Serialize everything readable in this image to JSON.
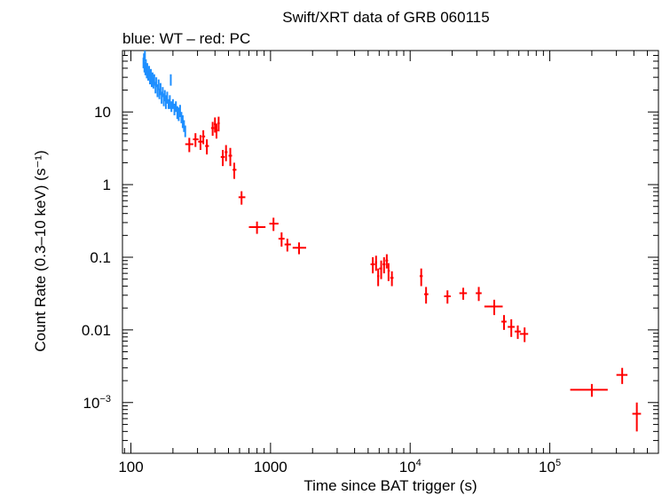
{
  "chart_data": {
    "type": "scatter",
    "title": "Swift/XRT data of GRB 060115",
    "subtitle": "blue: WT – red: PC",
    "xlabel": "Time since BAT trigger (s)",
    "ylabel": "Count Rate (0.3–10 keV) (s⁻¹)",
    "xscale": "log",
    "yscale": "log",
    "xlim": [
      87,
      600000
    ],
    "ylim": [
      0.0002,
      70
    ],
    "x_ticks": [
      {
        "value": 100,
        "label": "100"
      },
      {
        "value": 1000,
        "label": "1000"
      },
      {
        "value": 10000,
        "base": "10",
        "exp": "4"
      },
      {
        "value": 100000,
        "base": "10",
        "exp": "5"
      }
    ],
    "y_ticks": [
      {
        "value": 10,
        "label": "10"
      },
      {
        "value": 1,
        "label": "1"
      },
      {
        "value": 0.1,
        "label": "0.1"
      },
      {
        "value": 0.01,
        "label": "0.01"
      },
      {
        "value": 0.001,
        "base": "10",
        "exp": "−3"
      }
    ],
    "series": [
      {
        "name": "WT",
        "color": "#1e8fff",
        "points": [
          [
            123,
            48,
            8
          ],
          [
            124,
            55,
            9
          ],
          [
            125,
            42,
            7
          ],
          [
            126,
            60,
            10
          ],
          [
            127,
            38,
            6
          ],
          [
            128,
            45,
            8
          ],
          [
            130,
            35,
            6
          ],
          [
            131,
            40,
            7
          ],
          [
            133,
            32,
            5
          ],
          [
            135,
            37,
            6
          ],
          [
            137,
            29,
            5
          ],
          [
            139,
            33,
            6
          ],
          [
            141,
            27,
            5
          ],
          [
            143,
            30,
            5
          ],
          [
            145,
            25,
            4
          ],
          [
            147,
            28,
            5
          ],
          [
            150,
            22,
            4
          ],
          [
            152,
            26,
            4
          ],
          [
            155,
            20,
            4
          ],
          [
            158,
            24,
            4
          ],
          [
            160,
            18,
            3
          ],
          [
            163,
            21,
            4
          ],
          [
            166,
            16,
            3
          ],
          [
            169,
            19,
            3
          ],
          [
            172,
            15,
            3
          ],
          [
            175,
            17,
            3
          ],
          [
            178,
            14,
            3
          ],
          [
            182,
            16,
            3
          ],
          [
            186,
            13,
            2
          ],
          [
            190,
            14,
            3
          ],
          [
            193,
            28,
            5
          ],
          [
            195,
            12,
            2
          ],
          [
            200,
            13,
            2
          ],
          [
            205,
            11,
            2
          ],
          [
            210,
            12,
            2
          ],
          [
            215,
            10,
            2
          ],
          [
            220,
            9.5,
            2
          ],
          [
            225,
            10.5,
            2
          ],
          [
            230,
            8.5,
            1.5
          ],
          [
            235,
            7.5,
            1.5
          ],
          [
            240,
            6.5,
            1.2
          ],
          [
            245,
            5.5,
            1
          ]
        ]
      },
      {
        "name": "PC",
        "color": "#ff0000",
        "points": [
          [
            262,
            3.6,
            0.8,
            245,
            280
          ],
          [
            290,
            4.2,
            0.9,
            278,
            305
          ],
          [
            315,
            3.9,
            0.9,
            303,
            330
          ],
          [
            330,
            4.6,
            1,
            322,
            340
          ],
          [
            350,
            3.4,
            0.8,
            340,
            362
          ],
          [
            385,
            6.0,
            1.3,
            375,
            395
          ],
          [
            400,
            6.8,
            1.6,
            393,
            408
          ],
          [
            410,
            5.6,
            1.3,
            404,
            418
          ],
          [
            425,
            7.0,
            1.6,
            417,
            433
          ],
          [
            455,
            2.4,
            0.6,
            440,
            470
          ],
          [
            480,
            2.8,
            0.7,
            470,
            492
          ],
          [
            515,
            2.5,
            0.7,
            500,
            530
          ],
          [
            550,
            1.6,
            0.4,
            535,
            570
          ],
          [
            620,
            0.67,
            0.14,
            590,
            660
          ],
          [
            800,
            0.26,
            0.05,
            700,
            920
          ],
          [
            1050,
            0.29,
            0.06,
            980,
            1140
          ],
          [
            1200,
            0.18,
            0.04,
            1140,
            1260
          ],
          [
            1320,
            0.15,
            0.03,
            1260,
            1400
          ],
          [
            1600,
            0.135,
            0.025,
            1440,
            1800
          ],
          [
            5400,
            0.08,
            0.02,
            5200,
            5600
          ],
          [
            5700,
            0.085,
            0.02,
            5600,
            5800
          ],
          [
            5900,
            0.055,
            0.015,
            5800,
            6000
          ],
          [
            6200,
            0.07,
            0.02,
            6000,
            6300
          ],
          [
            6500,
            0.08,
            0.02,
            6350,
            6650
          ],
          [
            6800,
            0.09,
            0.02,
            6650,
            6950
          ],
          [
            7000,
            0.065,
            0.018,
            6900,
            7150
          ],
          [
            7400,
            0.052,
            0.012,
            7200,
            7600
          ],
          [
            12000,
            0.055,
            0.015,
            11700,
            12300
          ],
          [
            13000,
            0.031,
            0.008,
            12600,
            13500
          ],
          [
            18500,
            0.029,
            0.006,
            17500,
            19500
          ],
          [
            24000,
            0.032,
            0.006,
            22500,
            25500
          ],
          [
            31000,
            0.032,
            0.007,
            29500,
            32500
          ],
          [
            40000,
            0.021,
            0.005,
            34000,
            46000
          ],
          [
            47000,
            0.013,
            0.003,
            45000,
            49000
          ],
          [
            53000,
            0.011,
            0.003,
            50000,
            56000
          ],
          [
            59000,
            0.0095,
            0.002,
            56000,
            62000
          ],
          [
            66000,
            0.0088,
            0.002,
            61000,
            70000
          ],
          [
            200000,
            0.0015,
            0.0003,
            140000,
            260000
          ],
          [
            330000,
            0.0024,
            0.0006,
            300000,
            360000
          ],
          [
            420000,
            0.0007,
            0.0003,
            390000,
            450000
          ]
        ]
      }
    ]
  }
}
